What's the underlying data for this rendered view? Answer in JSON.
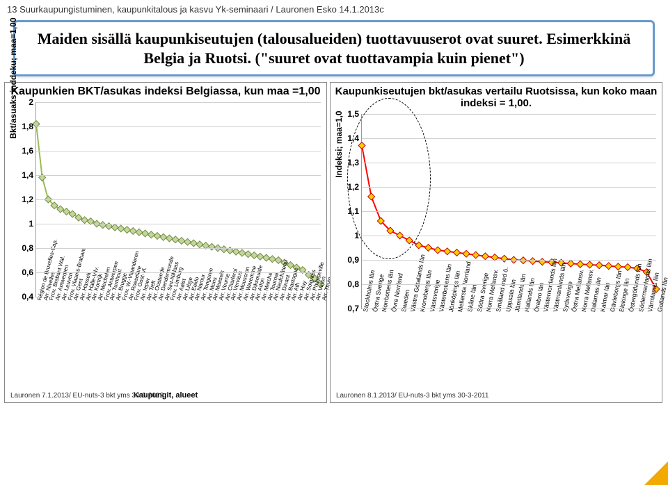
{
  "header_text": "13        Suurkaupungistuminen, kaupunkitalous ja kasvu Yk-seminaari / Lauronen Esko 14.1.2013c",
  "title_box": "Maiden sisällä kaupunkiseutujen (talousalueiden) tuottavuuserot ovat suuret. Esimerkkinä Belgia ja Ruotsi. (\"suuret ovat tuottavampia kuin pienet\")",
  "left_chart": {
    "type": "line",
    "title": "Kaupunkien BKT/asukas indeksi Belgiassa, kun maa =1,00",
    "ylabel": "Bkt/asuaks inddeku; maa=1,00",
    "xaxis_title": "Kaupungit, alueet",
    "footnote": "Lauronen 7.1.2013/ EU-nuts-3 bkt yms 30-3-2012",
    "ylim": [
      0.4,
      2.0
    ],
    "ytick_step": 0.2,
    "grid_color": "#d0d0d0",
    "line_color": "#9bbb59",
    "marker_fill": "#c3d69b",
    "marker_stroke": "#71893f",
    "marker_size": 5,
    "line_width": 2,
    "categories": [
      "Région de Bruxelles-Cap.",
      "Arr. Nivelles",
      "Prov. Brabant Wal.",
      "Arr. Antwerpen",
      "Arr. Leuven",
      "Prov. Vlaams-Brabant",
      "Arr. Gent",
      "Arr. Hasselt",
      "Arr. Halle-Vilv.",
      "Arr. Kortrijk",
      "Arr. Mechelen",
      "Prov. Antwerpen",
      "Arr. Turnhout",
      "Arr. Brugge",
      "Prov. W.-Vlaanderen",
      "Arr. Roeselare",
      "Prov. Oost-Vl.",
      "Arr. Ieper",
      "Arr. Tielt",
      "Arr. Oostende",
      "Arr. Dendermonde",
      "Arr. Sint-Niklaas",
      "Prov. Limburg",
      "Arr. Aalst",
      "Arr. Liège",
      "Arr. Eeklo",
      "Arr. Namur",
      "Arr. Tongeren",
      "Arr. Mons",
      "Arr. Maaseik",
      "Arr. Veurne",
      "Arr. Charleroi",
      "Arr. Verviers",
      "Arr. Mouscron",
      "Arr. Waremme",
      "Arr. Diksmuide",
      "Arr. Arlon",
      "Arr. Marche",
      "Arr. Tournai",
      "Arr. Neufchâteau",
      "Arr. Dinant",
      "Arr. Bastogne",
      "Arr. Ath",
      "Arr. Huy",
      "Arr. Soignies",
      "Arr. Philippeville",
      "Arr. Virton",
      "Arr. Thuin"
    ],
    "values": [
      1.82,
      1.38,
      1.2,
      1.15,
      1.12,
      1.1,
      1.08,
      1.05,
      1.03,
      1.02,
      1.0,
      0.99,
      0.98,
      0.97,
      0.96,
      0.95,
      0.94,
      0.93,
      0.92,
      0.91,
      0.9,
      0.89,
      0.88,
      0.87,
      0.86,
      0.85,
      0.84,
      0.83,
      0.82,
      0.81,
      0.8,
      0.79,
      0.78,
      0.77,
      0.76,
      0.75,
      0.74,
      0.73,
      0.72,
      0.71,
      0.7,
      0.68,
      0.66,
      0.64,
      0.62,
      0.58,
      0.55,
      0.5
    ]
  },
  "right_chart": {
    "type": "line",
    "title": "Kaupunkiseutujen bkt/asukas vertailu Ruotsissa, kun koko maan indeksi = 1,00.",
    "ylabel": "Indeksi; maa=1,0",
    "footnote": "Lauronen 8.1.2013/ EU-nuts-3 bkt yms 30-3-2011",
    "ylim": [
      0.7,
      1.5
    ],
    "ytick_step": 0.1,
    "grid_color": "#d0d0d0",
    "line_color": "#ff0000",
    "marker_fill": "#ffcc00",
    "marker_stroke": "#c00000",
    "marker_size": 5,
    "line_width": 2,
    "categories": [
      "Stockholms län",
      "Östra Sverige",
      "Norrbottens län",
      "Övre Norrland",
      "Sweden",
      "Västra Götalands län",
      "Kronobergs län",
      "Västsverige",
      "Västerbottens län",
      "Jönköpings län",
      "Mellersta Norrland",
      "Skåne län",
      "Södra Sverige",
      "Norra Mellansv.",
      "Småland med ö.",
      "Uppsala län",
      "Jämtlands län",
      "Hallands län",
      "Örebro län",
      "Västernorrlands län",
      "Västmanlands län",
      "Sydsverige",
      "Östra Mellansv.",
      "Norra Mellansv.",
      "Dalarnas län",
      "Kalmar län",
      "Gävleborgs län",
      "Blekinge län",
      "Östergötlands län",
      "Södermanlands län",
      "Värmlands län",
      "Gotlands län"
    ],
    "values": [
      1.37,
      1.16,
      1.06,
      1.02,
      1.0,
      0.98,
      0.96,
      0.95,
      0.94,
      0.935,
      0.93,
      0.925,
      0.92,
      0.915,
      0.91,
      0.905,
      0.9,
      0.898,
      0.895,
      0.892,
      0.89,
      0.888,
      0.885,
      0.882,
      0.88,
      0.878,
      0.875,
      0.872,
      0.87,
      0.865,
      0.85,
      0.78
    ],
    "ellipse": {
      "left_pct": -5,
      "top_pct": -8,
      "width_pct": 28,
      "height_pct": 82
    }
  }
}
